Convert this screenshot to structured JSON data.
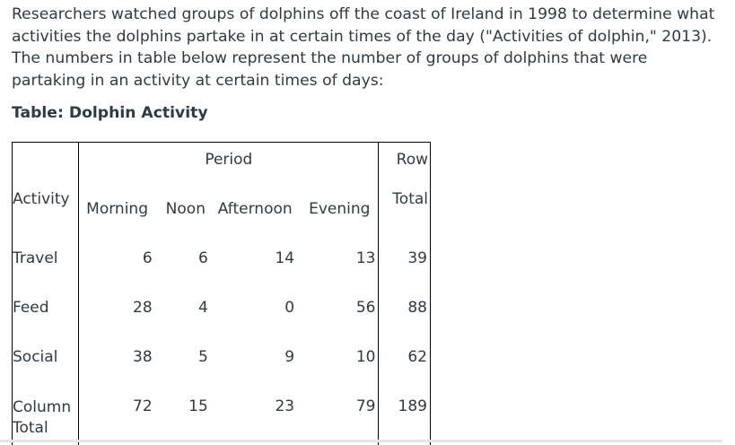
{
  "intro_text": "Researchers watched groups of dolphins off the coast of Ireland in 1998 to determine what activities the dolphins partake in at certain times of the day (\"Activities of dolphin,\" 2013).  The numbers in table below represent the number of groups of dolphins that were partaking in an activity at certain times of days:",
  "caption": "Table: Dolphin Activity",
  "table": {
    "period_label": "Period",
    "row_label_top": "Row",
    "activity_label": "Activity",
    "total_label": "Total",
    "columns": [
      "Morning",
      "Noon",
      "Afternoon",
      "Evening"
    ],
    "rows": [
      {
        "label": "Travel",
        "values": [
          "6",
          "6",
          "14",
          "13"
        ],
        "total": "39"
      },
      {
        "label": "Feed",
        "values": [
          "28",
          "4",
          "0",
          "56"
        ],
        "total": "88"
      },
      {
        "label": "Social",
        "values": [
          "38",
          "5",
          "9",
          "10"
        ],
        "total": "62"
      }
    ],
    "column_total": {
      "label_line1": "Column",
      "label_line2": "Total",
      "values": [
        "72",
        "15",
        "23",
        "79"
      ],
      "total": "189"
    }
  }
}
